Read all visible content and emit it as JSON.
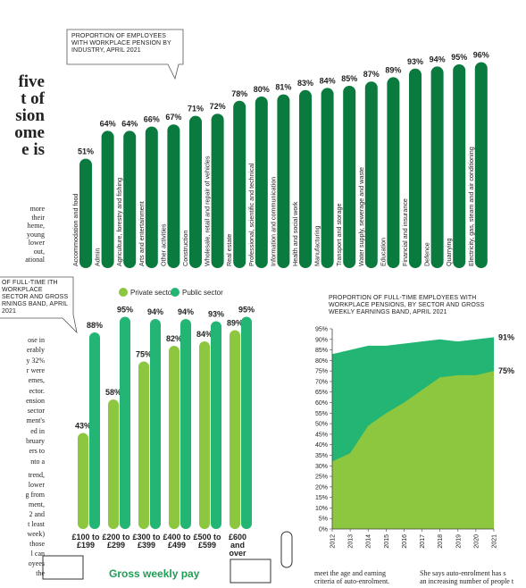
{
  "article": {
    "headline": [
      "five",
      "t of",
      "sion",
      "ome",
      "e is"
    ],
    "column_top": [
      "more",
      "their",
      "heme,",
      "young",
      "lower",
      "out,",
      "ational"
    ],
    "column_middle": [
      "ose in",
      "erably",
      "y 32%",
      "r were",
      "emes,",
      "ector.",
      "ension",
      "sector",
      "ment's",
      "ed in",
      "bruary",
      "ers to",
      "nto a"
    ],
    "column_bottom": [
      "trend,",
      "lower",
      "g from",
      "ment,",
      "2 and",
      "t least",
      "week)",
      "those",
      "l can",
      "oyees",
      "the"
    ],
    "bottom_left": [
      "meet the age and earning",
      "criteria of auto-enrolment."
    ],
    "bottom_right": [
      "She says auto-enrolment has s",
      "an increasing number of people t"
    ]
  },
  "chart_data": [
    {
      "type": "bar",
      "title": "PROPORTION OF EMPLOYEES WITH WORKPLACE PENSION BY INDUSTRY, APRIL 2021",
      "categories": [
        "Accommodation and food",
        "Admin",
        "Agriculture, forestry and fishing",
        "Arts and entertainment",
        "Other activities",
        "Construction",
        "Wholesale, retail and repair of vehicles",
        "Real estate",
        "Professional, scientific and technical",
        "Information and communication",
        "Health and social work",
        "Manufacturing",
        "Transport and storage",
        "Water supply, sewerage and waste",
        "Education",
        "Financial and insurance",
        "Defence",
        "Quarrying",
        "Electricity, gas, steam and air conditioning"
      ],
      "values": [
        51,
        64,
        64,
        66,
        67,
        71,
        72,
        78,
        80,
        81,
        83,
        84,
        85,
        87,
        89,
        93,
        94,
        95,
        96
      ],
      "value_labels": [
        "51%",
        "64%",
        "64%",
        "66%",
        "67%",
        "71%",
        "72%",
        "78%",
        "80%",
        "81%",
        "83%",
        "84%",
        "85%",
        "87%",
        "89%",
        "93%",
        "94%",
        "95%",
        "96%"
      ],
      "color": "#0b7a3e"
    },
    {
      "type": "bar",
      "title": "OF FULL-TIME ITH WORKPLACE SECTOR AND GROSS RNINGS BAND, APRIL 2021",
      "x_label": "Gross weekly pay",
      "categories": [
        "£100 to £199",
        "£200 to £299",
        "£300 to £399",
        "£400 to £499",
        "£500 to £599",
        "£600 and over"
      ],
      "series": [
        {
          "name": "Private sector",
          "color": "#8dc63f",
          "values": [
            43,
            58,
            75,
            82,
            84,
            89
          ],
          "value_labels": [
            "43%",
            "58%",
            "75%",
            "82%",
            "84%",
            "89%"
          ]
        },
        {
          "name": "Public sector",
          "color": "#22b574",
          "values": [
            88,
            95,
            94,
            94,
            93,
            95
          ],
          "value_labels": [
            "88%",
            "95%",
            "94%",
            "94%",
            "93%",
            "95%"
          ]
        }
      ]
    },
    {
      "type": "area",
      "title": "PROPORTION OF FULL-TIME EMPLOYEES WITH WORKPLACE PENSIONS, BY SECTOR AND GROSS WEEKLY EARNINGS BAND, APRIL 2021",
      "x": [
        2012,
        2013,
        2014,
        2015,
        2016,
        2017,
        2018,
        2019,
        2020,
        2021
      ],
      "series": [
        {
          "color": "#22b574",
          "values": [
            83,
            85,
            87,
            87,
            88,
            89,
            90,
            89,
            90,
            91
          ],
          "value_labels": [
            null,
            null,
            null,
            null,
            null,
            null,
            null,
            null,
            null,
            "91%"
          ]
        },
        {
          "color": "#8dc63f",
          "values": [
            32,
            36,
            49,
            55,
            60,
            66,
            72,
            73,
            73,
            75
          ],
          "value_labels": [
            null,
            null,
            null,
            null,
            null,
            null,
            null,
            null,
            null,
            "75%"
          ]
        }
      ],
      "xlim": [
        2012,
        2021
      ],
      "xticks": [
        2012,
        2013,
        2014,
        2015,
        2016,
        2017,
        2018,
        2019,
        2020,
        2021
      ],
      "ylim": [
        0,
        95
      ],
      "yticks": [
        {
          "value": 0,
          "label": "0%"
        },
        {
          "value": 5,
          "label": "5%"
        },
        {
          "value": 10,
          "label": "10%"
        },
        {
          "value": 15,
          "label": "15%"
        },
        {
          "value": 20,
          "label": "20%"
        },
        {
          "value": 25,
          "label": "25%"
        },
        {
          "value": 30,
          "label": "30%"
        },
        {
          "value": 35,
          "label": "35%"
        },
        {
          "value": 40,
          "label": "40%"
        },
        {
          "value": 45,
          "label": "45%"
        },
        {
          "value": 50,
          "label": "50%"
        },
        {
          "value": 55,
          "label": "55%"
        },
        {
          "value": 60,
          "label": "60%"
        },
        {
          "value": 65,
          "label": "65%"
        },
        {
          "value": 70,
          "label": "70%"
        },
        {
          "value": 75,
          "label": "75%"
        },
        {
          "value": 80,
          "label": "80%"
        },
        {
          "value": 85,
          "label": "85%"
        },
        {
          "value": 90,
          "label": "90%"
        },
        {
          "value": 95,
          "label": "95%"
        }
      ]
    }
  ]
}
